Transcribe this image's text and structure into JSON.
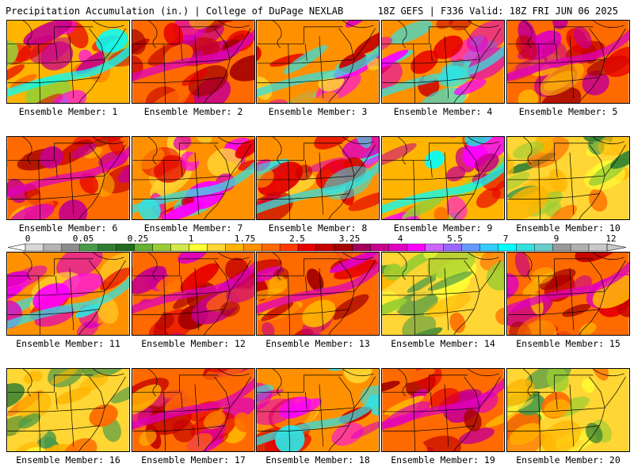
{
  "header": {
    "left_title": "Precipitation Accumulation (in.) | College of DuPage NEXLAB",
    "right_title": "18Z GEFS | F336 Valid: 18Z FRI JUN 06 2025"
  },
  "panels": [
    {
      "label": "Ensemble Member: 1",
      "theme": "wet-southeast"
    },
    {
      "label": "Ensemble Member: 2",
      "theme": "wet-central"
    },
    {
      "label": "Ensemble Member: 3",
      "theme": "wet-south"
    },
    {
      "label": "Ensemble Member: 4",
      "theme": "wet-south"
    },
    {
      "label": "Ensemble Member: 5",
      "theme": "wet-central"
    },
    {
      "label": "Ensemble Member: 6",
      "theme": "wet-central"
    },
    {
      "label": "Ensemble Member: 7",
      "theme": "wet-south"
    },
    {
      "label": "Ensemble Member: 8",
      "theme": "wet-south"
    },
    {
      "label": "Ensemble Member: 9",
      "theme": "wet-southeast"
    },
    {
      "label": "Ensemble Member: 10",
      "theme": "dry"
    },
    {
      "label": "Ensemble Member: 11",
      "theme": "wet-south"
    },
    {
      "label": "Ensemble Member: 12",
      "theme": "wet-central"
    },
    {
      "label": "Ensemble Member: 13",
      "theme": "wet-central"
    },
    {
      "label": "Ensemble Member: 14",
      "theme": "dry"
    },
    {
      "label": "Ensemble Member: 15",
      "theme": "wet-central"
    },
    {
      "label": "Ensemble Member: 16",
      "theme": "dry"
    },
    {
      "label": "Ensemble Member: 17",
      "theme": "wet-central"
    },
    {
      "label": "Ensemble Member: 18",
      "theme": "wet-south"
    },
    {
      "label": "Ensemble Member: 19",
      "theme": "wet-central"
    },
    {
      "label": "Ensemble Member: 20",
      "theme": "dry"
    }
  ],
  "colorbar": {
    "labels": [
      "0",
      "0.05",
      "0.25",
      "1",
      "1.75",
      "2.5",
      "3.25",
      "4",
      "5.5",
      "7",
      "9",
      "12"
    ],
    "colors": [
      "#d8d8d8",
      "#b4b4b4",
      "#8c8c8c",
      "#4a9a4a",
      "#2e7d32",
      "#1f6b1f",
      "#66b033",
      "#9acd32",
      "#d4e84a",
      "#ffff33",
      "#ffd633",
      "#ffb400",
      "#ff9100",
      "#ff6a00",
      "#ff3b00",
      "#e60000",
      "#c40000",
      "#a30000",
      "#a0005a",
      "#c8008c",
      "#e000c0",
      "#ff00ff",
      "#cc66ff",
      "#9966ff",
      "#6699ff",
      "#33ccff",
      "#00ffff",
      "#33e0e0",
      "#66cccc",
      "#999999",
      "#b0b0b0",
      "#c8c8c8"
    ]
  }
}
